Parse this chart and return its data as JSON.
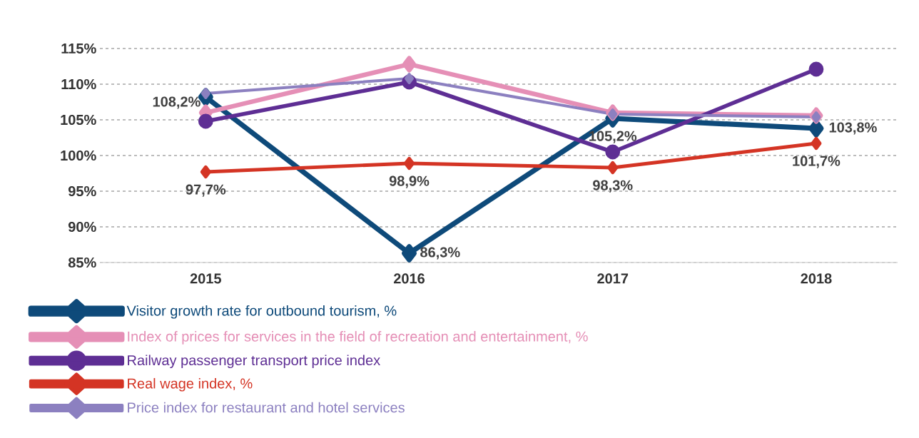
{
  "chart_data": {
    "type": "line",
    "categories": [
      "2015",
      "2016",
      "2017",
      "2018"
    ],
    "series": [
      {
        "name": "Visitor growth rate for outbound tourism, %",
        "color": "#0e4a7a",
        "marker": "diamond",
        "values": [
          108.2,
          86.3,
          105.2,
          103.8
        ],
        "value_labels": [
          "108,2%",
          "86,3%",
          "105,2%",
          "103,8%"
        ]
      },
      {
        "name": "Index of prices for services in the field of recreation and entertainment, %",
        "color": "#e58fb6",
        "marker": "diamond",
        "values": [
          106.0,
          112.8,
          106.0,
          105.6
        ]
      },
      {
        "name": "Railway passenger transport price index",
        "color": "#5e2e94",
        "marker": "circle",
        "values": [
          104.8,
          110.3,
          100.5,
          112.1
        ]
      },
      {
        "name": "Real wage index, %",
        "color": "#d43424",
        "marker": "diamond",
        "values": [
          97.7,
          98.9,
          98.3,
          101.7
        ],
        "value_labels": [
          "97,7%",
          "98,9%",
          "98,3%",
          "101,7%"
        ]
      },
      {
        "name": "Price index for restaurant and hotel services",
        "color": "#8c80c0",
        "marker": "diamond",
        "values": [
          108.7,
          110.8,
          105.8,
          105.4
        ]
      }
    ],
    "ylim": [
      85,
      115
    ],
    "yticks": [
      {
        "value": 85,
        "label": "85%"
      },
      {
        "value": 90,
        "label": "90%"
      },
      {
        "value": 95,
        "label": "95%"
      },
      {
        "value": 100,
        "label": "100%"
      },
      {
        "value": 105,
        "label": "105%"
      },
      {
        "value": 110,
        "label": "110%"
      },
      {
        "value": 115,
        "label": "115%"
      }
    ],
    "grid": "y",
    "legend": "bottom",
    "line_style": "solid"
  }
}
